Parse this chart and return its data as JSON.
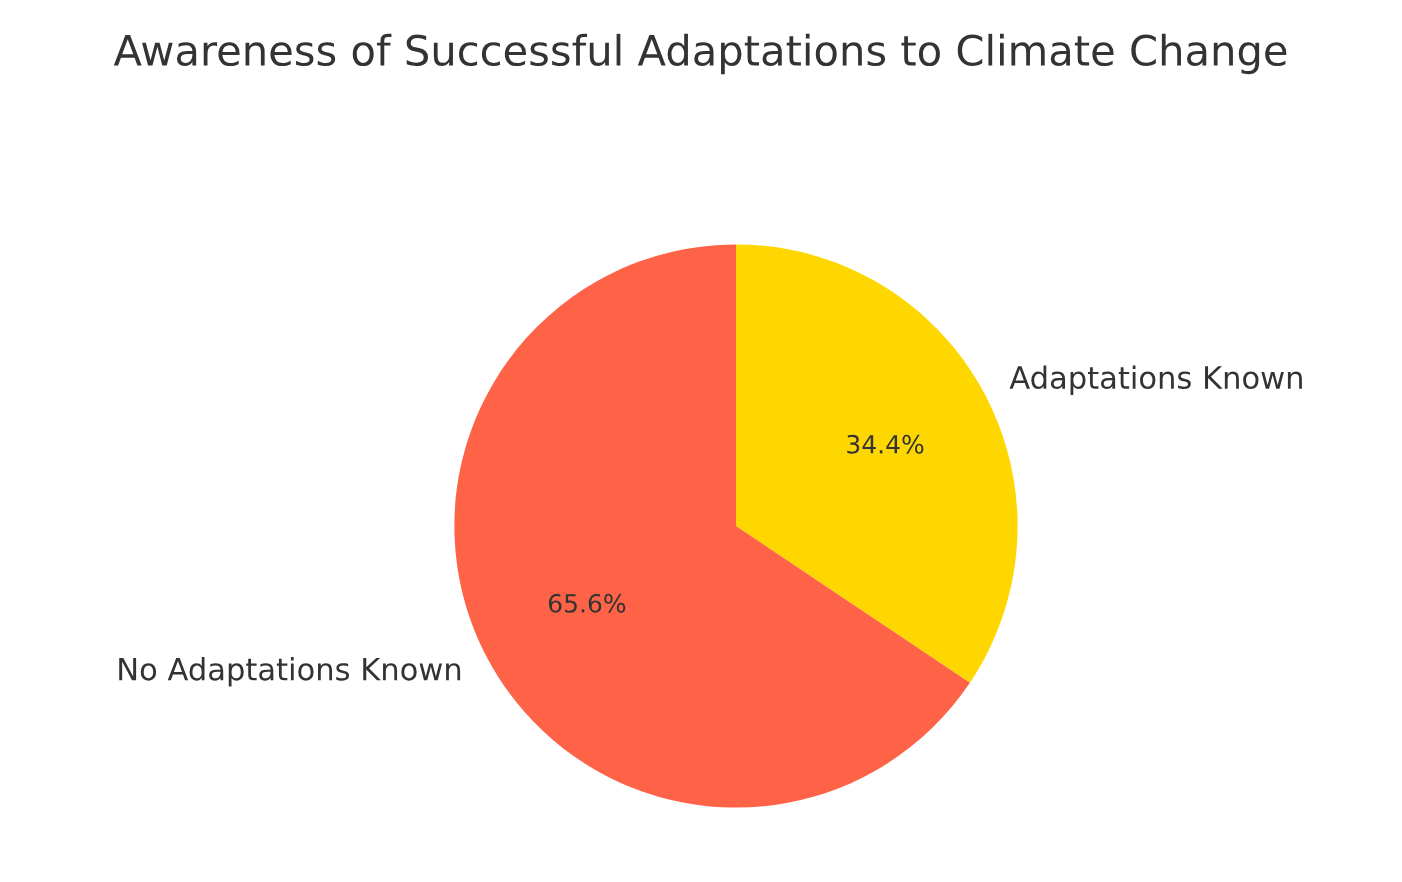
{
  "chart_data": {
    "type": "pie",
    "title": "Awareness of Successful Adaptations to Climate Change",
    "categories": [
      "Adaptations Known",
      "No Adaptations Known"
    ],
    "values": [
      34.4,
      65.6
    ],
    "colors": [
      "#ffd700",
      "#ff6347"
    ],
    "value_labels": [
      "34.4%",
      "65.6%"
    ],
    "legend": false
  }
}
